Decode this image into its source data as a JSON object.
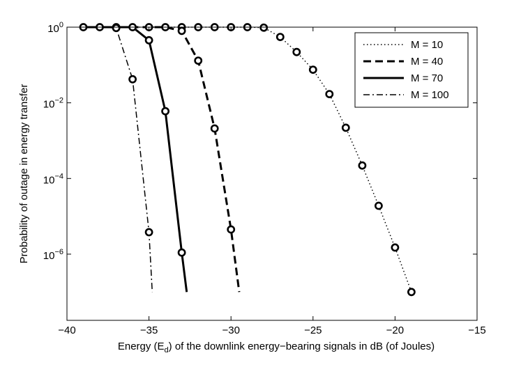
{
  "chart_data": {
    "type": "line",
    "title": "",
    "xlabel_parts": [
      "Energy (E",
      "d",
      ") of the downlink energy−bearing signals in dB (of Joules)"
    ],
    "ylabel": "Probability of outage in energy transfer",
    "xlim": [
      -40,
      -15
    ],
    "ylim_log10": [
      -7.75,
      0
    ],
    "y_scale": "log",
    "grid": false,
    "legend_position": "top-right",
    "x_ticks": [
      {
        "value": -40,
        "label": "−40"
      },
      {
        "value": -35,
        "label": "−35"
      },
      {
        "value": -30,
        "label": "−30"
      },
      {
        "value": -25,
        "label": "−25"
      },
      {
        "value": -20,
        "label": "−20"
      },
      {
        "value": -15,
        "label": "−15"
      }
    ],
    "y_ticks": [
      {
        "exp": 0,
        "base": "10",
        "power": "0"
      },
      {
        "exp": -2,
        "base": "10",
        "power": "−2"
      },
      {
        "exp": -4,
        "base": "10",
        "power": "−4"
      },
      {
        "exp": -6,
        "base": "10",
        "power": "−6"
      }
    ],
    "series": [
      {
        "name": "M = 10",
        "line_style": "dotted",
        "x": [
          -39,
          -38,
          -37,
          -36,
          -35,
          -34,
          -33,
          -32,
          -31,
          -30,
          -29,
          -28,
          -27,
          -26,
          -25,
          -24,
          -23,
          -22,
          -21,
          -20,
          -19
        ],
        "y": [
          1,
          1,
          1,
          1,
          1,
          1,
          1,
          1,
          1,
          1,
          1,
          0.97,
          0.55,
          0.22,
          0.075,
          0.017,
          0.0022,
          0.00022,
          1.9e-05,
          1.5e-06,
          1e-07
        ]
      },
      {
        "name": "M = 40",
        "line_style": "dashed",
        "x": [
          -39,
          -38,
          -37,
          -36,
          -35,
          -34,
          -33,
          -32,
          -31,
          -30,
          -29.5
        ],
        "y": [
          1,
          1,
          1,
          1,
          1,
          1,
          0.8,
          0.13,
          0.0021,
          4.5e-06,
          1e-07
        ]
      },
      {
        "name": "M = 70",
        "line_style": "solid",
        "x": [
          -39,
          -38,
          -37,
          -36,
          -35,
          -34,
          -33,
          -32.7
        ],
        "y": [
          1,
          1,
          1,
          1,
          0.45,
          0.006,
          1.1e-06,
          1e-07
        ]
      },
      {
        "name": "M = 100",
        "line_style": "dashdot",
        "x": [
          -39,
          -38,
          -37,
          -36,
          -35,
          -34.8
        ],
        "y": [
          1,
          1,
          0.95,
          0.042,
          3.8e-06,
          1e-07
        ]
      }
    ],
    "markers": [
      {
        "series": "M = 10",
        "x": [
          -39,
          -38,
          -37,
          -36,
          -35,
          -34,
          -33,
          -32,
          -31,
          -30,
          -29,
          -28,
          -27,
          -26,
          -25,
          -24,
          -23,
          -22,
          -21,
          -20,
          -19
        ],
        "y": [
          1,
          1,
          1,
          1,
          1,
          1,
          1,
          1,
          1,
          1,
          1,
          0.97,
          0.55,
          0.22,
          0.075,
          0.017,
          0.0022,
          0.00022,
          1.9e-05,
          1.5e-06,
          1e-07
        ]
      },
      {
        "series": "M = 40",
        "x": [
          -33,
          -32,
          -31,
          -30
        ],
        "y": [
          0.8,
          0.13,
          0.0021,
          4.5e-06
        ]
      },
      {
        "series": "M = 70",
        "x": [
          -35,
          -34,
          -33
        ],
        "y": [
          0.45,
          0.006,
          1.1e-06
        ]
      },
      {
        "series": "M = 100",
        "x": [
          -37,
          -36,
          -35
        ],
        "y": [
          0.95,
          0.042,
          3.8e-06
        ]
      }
    ],
    "colors": {
      "line": "#000000",
      "axes": "#000000",
      "background": "#ffffff"
    }
  }
}
